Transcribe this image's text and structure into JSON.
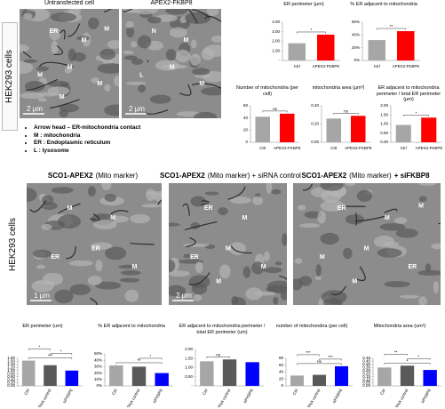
{
  "panel_a": {
    "side_label": "HEK293 cells",
    "images": [
      {
        "caption": "Untransfected cell",
        "labels": [
          "ER",
          "M",
          "M",
          "M",
          "M",
          "M",
          "M"
        ],
        "scale_bar": "2 μm"
      },
      {
        "caption": "APEX2-FKBP8",
        "labels": [
          "N",
          "M",
          "M",
          "L",
          "M"
        ],
        "scale_bar": "2 μm"
      }
    ],
    "legend": [
      "Arrow head – ER-mitochondria contact",
      "M : mitochondria",
      "ER : Endoplasmic reticulum",
      "L : lysosome"
    ]
  },
  "panel_b": {
    "side_label": "HEK293 cells",
    "images": [
      {
        "title": [
          {
            "text": "SCO1-APEX2",
            "bold": true
          },
          {
            "text": "(Mito marker)",
            "bold": false
          }
        ],
        "labels": [
          "M",
          "M",
          "ER",
          "ER",
          "M"
        ],
        "scale_bar": "1 μm"
      },
      {
        "title": [
          {
            "text": "SCO1-APEX2",
            "bold": true
          },
          {
            "text": "(Mito marker) + siRNA control",
            "bold": false
          }
        ],
        "labels": [
          "ER",
          "M",
          "M",
          "ER",
          "M",
          "M"
        ],
        "scale_bar": "2 μm"
      },
      {
        "title": [
          {
            "text": "SCO1-APEX2",
            "bold": true
          },
          {
            "text": "(Mito marker)",
            "bold": false
          },
          {
            "text": "+ siFKBP8",
            "bold": true
          }
        ],
        "labels": [
          "ER",
          "M",
          "M",
          "M",
          "ER",
          "M",
          "M"
        ]
      }
    ]
  },
  "chart_data": [
    {
      "type": "bar",
      "title": "ER perimeter (μm)",
      "categories": [
        "Ctrl",
        "APEX2-FKBP8"
      ],
      "values": [
        1.8,
        2.7
      ],
      "colors": [
        "#a6a6a6",
        "#ff0000"
      ],
      "ylim": [
        0,
        4
      ],
      "yticks": [
        {
          "value": 0,
          "label": "-"
        },
        {
          "value": 1,
          "label": "1.00"
        },
        {
          "value": 2,
          "label": "2.00"
        },
        {
          "value": 3,
          "label": "3.00"
        },
        {
          "value": 4,
          "label": "4.00"
        }
      ],
      "annotations": [
        "*"
      ]
    },
    {
      "type": "bar",
      "title": "% ER adjacent to mitochondria",
      "categories": [
        "Ctrl",
        "APEX2-FKBP8"
      ],
      "values": [
        32,
        46
      ],
      "colors": [
        "#a6a6a6",
        "#ff0000"
      ],
      "ylim": [
        0,
        60
      ],
      "yticks": [
        {
          "value": 0,
          "label": "0%"
        },
        {
          "value": 20,
          "label": "20%"
        },
        {
          "value": 40,
          "label": "40%"
        },
        {
          "value": 60,
          "label": "60%"
        }
      ],
      "annotations": [
        "**"
      ]
    },
    {
      "type": "bar",
      "title": "Number of mitochondria (per cell)",
      "categories": [
        "Ctrl",
        "APEX2-FKBP8"
      ],
      "values": [
        42,
        47
      ],
      "colors": [
        "#a6a6a6",
        "#ff0000"
      ],
      "ylim": [
        0,
        60
      ],
      "yticks": [
        0,
        20,
        40,
        60
      ],
      "annotations": [
        "ns"
      ]
    },
    {
      "type": "bar",
      "title": "mitochondria area (μm²)",
      "categories": [
        "Ctrl",
        "APEX2-FKBP8"
      ],
      "values": [
        0.26,
        0.29
      ],
      "colors": [
        "#a6a6a6",
        "#ff0000"
      ],
      "ylim": [
        0,
        0.4
      ],
      "yticks": [
        {
          "value": 0,
          "label": "0.00"
        },
        {
          "value": 0.2,
          "label": "0.20"
        },
        {
          "value": 0.4,
          "label": "0.40"
        }
      ],
      "annotations": [
        "ns"
      ]
    },
    {
      "type": "bar",
      "title": "ER adjacent to mitochondria perimeter / total ER perimeter (μm)",
      "categories": [
        "Ctrl",
        "APEX2-FKBP8"
      ],
      "values": [
        0.95,
        1.35
      ],
      "colors": [
        "#a6a6a6",
        "#ff0000"
      ],
      "ylim": [
        0,
        2
      ],
      "yticks": [
        {
          "value": 0,
          "label": "0.00"
        },
        {
          "value": 0.5,
          "label": "0.50"
        },
        {
          "value": 1,
          "label": "1.00"
        },
        {
          "value": 1.5,
          "label": "1.50"
        },
        {
          "value": 2,
          "label": "2.00"
        }
      ],
      "annotations": [
        "*"
      ]
    },
    {
      "type": "bar",
      "title": "ER perimeter (um)",
      "categories": [
        "Ctrl",
        "siRNA control",
        "siFKBP8"
      ],
      "values": [
        1.65,
        1.35,
        1.0
      ],
      "colors": [
        "#a6a6a6",
        "#595959",
        "#0000ff"
      ],
      "ylim": [
        0,
        1.8
      ],
      "yticks": [
        {
          "value": 0,
          "label": "0.00"
        },
        {
          "value": 0.2,
          "label": "0.20"
        },
        {
          "value": 0.4,
          "label": "0.40"
        },
        {
          "value": 0.6,
          "label": "0.60"
        },
        {
          "value": 0.8,
          "label": "0.80"
        },
        {
          "value": 1,
          "label": "1.00"
        },
        {
          "value": 1.2,
          "label": "1.20"
        },
        {
          "value": 1.4,
          "label": "1.40"
        },
        {
          "value": 1.6,
          "label": "1.60"
        },
        {
          "value": 1.8,
          "label": "1.80"
        }
      ],
      "annotations": [
        "***",
        "*",
        "*"
      ]
    },
    {
      "type": "bar",
      "title": "% ER adjacent to mitochondria",
      "categories": [
        "Ctrl",
        "siRNA control",
        "siFKBP8"
      ],
      "values": [
        32,
        30,
        20
      ],
      "colors": [
        "#a6a6a6",
        "#595959",
        "#0000ff"
      ],
      "ylim": [
        0,
        50
      ],
      "yticks": [
        {
          "value": 0,
          "label": "0%"
        },
        {
          "value": 10,
          "label": "10%"
        },
        {
          "value": 20,
          "label": "20%"
        },
        {
          "value": 30,
          "label": "30%"
        },
        {
          "value": 40,
          "label": "40%"
        },
        {
          "value": 50,
          "label": "50%"
        }
      ],
      "annotations": [
        "**",
        "*"
      ]
    },
    {
      "type": "bar",
      "title": "ER adjacent to mitochondria perimeter / total ER perimeter (um)",
      "categories": [
        "Ctrl",
        "siRNA control",
        "siFKBP8"
      ],
      "values": [
        1.35,
        1.45,
        1.3
      ],
      "colors": [
        "#a6a6a6",
        "#595959",
        "#0000ff"
      ],
      "ylim": [
        0,
        2
      ],
      "yticks": [
        {
          "value": 0,
          "label": "-"
        },
        {
          "value": 0.5,
          "label": "0.50"
        },
        {
          "value": 1,
          "label": "1.00"
        },
        {
          "value": 1.5,
          "label": "1.50"
        },
        {
          "value": 2,
          "label": "2.00"
        }
      ],
      "annotations": [
        "ns"
      ]
    },
    {
      "type": "bar",
      "title": "number of mitochondria (per cell)",
      "categories": [
        "Ctrl",
        "siRNA control",
        "siFKBP8"
      ],
      "values": [
        30,
        32,
        57
      ],
      "colors": [
        "#a6a6a6",
        "#595959",
        "#0000ff"
      ],
      "ylim": [
        0,
        80
      ],
      "yticks": [
        0,
        20,
        40,
        60,
        80
      ],
      "annotations": [
        "ns",
        "***",
        "***"
      ]
    },
    {
      "type": "bar",
      "title": "Mitochondria area (um²)",
      "categories": [
        "Ctrl",
        "siRNA control",
        "siFKBP8"
      ],
      "values": [
        0.3,
        0.33,
        0.26
      ],
      "colors": [
        "#a6a6a6",
        "#595959",
        "#0000ff"
      ],
      "ylim": [
        0,
        0.45
      ],
      "yticks": [
        {
          "value": 0,
          "label": "0.00"
        },
        {
          "value": 0.05,
          "label": "0.05"
        },
        {
          "value": 0.1,
          "label": "0.10"
        },
        {
          "value": 0.15,
          "label": "0.15"
        },
        {
          "value": 0.2,
          "label": "0.20"
        },
        {
          "value": 0.25,
          "label": "0.25"
        },
        {
          "value": 0.3,
          "label": "0.30"
        },
        {
          "value": 0.35,
          "label": "0.35"
        },
        {
          "value": 0.4,
          "label": "0.40"
        },
        {
          "value": 0.45,
          "label": "0.45"
        }
      ],
      "annotations": [
        "*",
        "*",
        "**"
      ]
    }
  ]
}
